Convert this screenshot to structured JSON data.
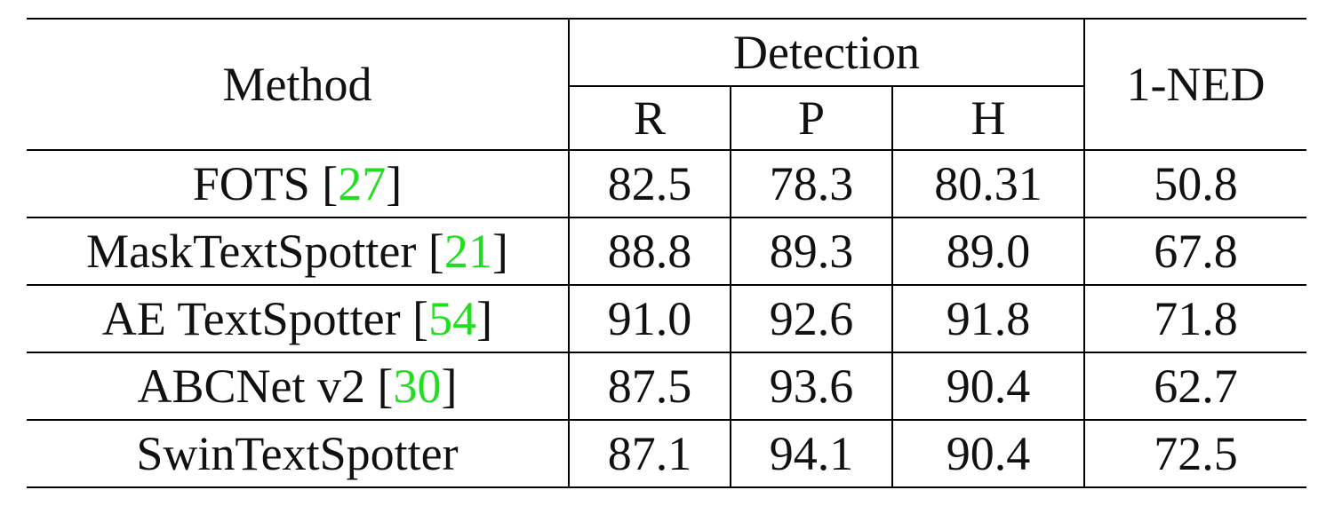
{
  "header": {
    "method": "Method",
    "detection": "Detection",
    "r": "R",
    "p": "P",
    "h": "H",
    "ned": "1-NED"
  },
  "rows": [
    {
      "name": "FOTS",
      "ref": "27",
      "r": "82.5",
      "p": "78.3",
      "h": "80.31",
      "ned": "50.8"
    },
    {
      "name": "MaskTextSpotter",
      "ref": "21",
      "r": "88.8",
      "p": "89.3",
      "h": "89.0",
      "ned": "67.8"
    },
    {
      "name": "AE TextSpotter",
      "ref": "54",
      "r": "91.0",
      "p": "92.6",
      "h": "91.8",
      "ned": "71.8"
    },
    {
      "name": "ABCNet v2",
      "ref": "30",
      "r": "87.5",
      "p": "93.6",
      "h": "90.4",
      "ned": "62.7"
    },
    {
      "name": "SwinTextSpotter",
      "ref": "",
      "r": "87.1",
      "p": "94.1",
      "h": "90.4",
      "ned": "72.5"
    }
  ],
  "colors": {
    "citation": "#22dd22",
    "rule": "#000000"
  }
}
